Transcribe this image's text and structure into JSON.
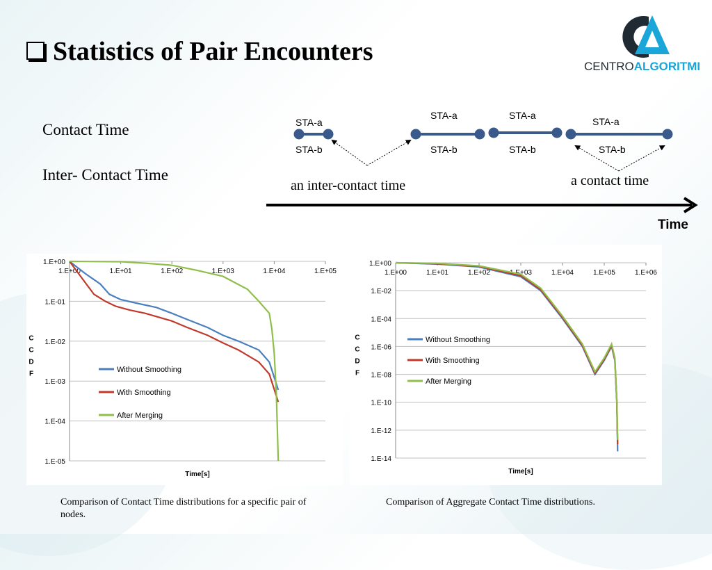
{
  "title": "Statistics of Pair Encounters",
  "logo": {
    "part1": "CENTRO",
    "part2": "ALGORITMI",
    "color_dark": "#1f2a33",
    "color_accent": "#1aa6d9"
  },
  "legend_labels": {
    "contact_time": "Contact Time",
    "inter_contact_time": "Inter- Contact Time"
  },
  "diagram": {
    "sta_a": "STA-a",
    "sta_b": "STA-b",
    "inter_contact_label": "an inter-contact time",
    "contact_label": "a contact time",
    "time_label": "Time",
    "line_color": "#3a5a8c"
  },
  "captions": {
    "left": "Comparison of  Contact Time distributions for a specific pair of nodes.",
    "right": "Comparison of Aggregate Contact Time distributions."
  },
  "colors": {
    "without": "#4a7fbf",
    "with": "#c0392b",
    "after": "#8fbf4a"
  },
  "chart_data": [
    {
      "type": "line",
      "xscale": "log",
      "yscale": "log",
      "xlabel": "Time[s]",
      "ylabel": "CCDF",
      "xticks": [
        "1.E+00",
        "1.E+01",
        "1.E+02",
        "1.E+03",
        "1.E+04",
        "1.E+05"
      ],
      "yticks": [
        "1.E+00",
        "1.E-01",
        "1.E-02",
        "1.E-03",
        "1.E-04",
        "1.E-05"
      ],
      "xlim": [
        1,
        100000
      ],
      "ylim": [
        1e-05,
        1
      ],
      "grid": true,
      "legend": "center-left",
      "series": [
        {
          "name": "Without Smoothing",
          "x": [
            1,
            2,
            4,
            6,
            10,
            20,
            50,
            100,
            200,
            500,
            1000,
            2000,
            5000,
            8000,
            12000
          ],
          "y": [
            1,
            0.5,
            0.27,
            0.15,
            0.11,
            0.09,
            0.07,
            0.05,
            0.035,
            0.022,
            0.014,
            0.01,
            0.006,
            0.003,
            0.0006
          ]
        },
        {
          "name": "With Smoothing",
          "x": [
            1,
            2,
            3,
            5,
            8,
            15,
            30,
            100,
            200,
            500,
            1000,
            2000,
            5000,
            8000,
            12000
          ],
          "y": [
            1,
            0.3,
            0.15,
            0.1,
            0.075,
            0.06,
            0.05,
            0.032,
            0.022,
            0.014,
            0.009,
            0.006,
            0.003,
            0.0015,
            0.0003
          ]
        },
        {
          "name": "After Merging",
          "x": [
            1,
            10,
            30,
            100,
            300,
            1000,
            3000,
            5000,
            8000,
            9000,
            10000,
            11000,
            12000
          ],
          "y": [
            1,
            0.98,
            0.9,
            0.8,
            0.6,
            0.42,
            0.2,
            0.1,
            0.05,
            0.02,
            0.005,
            0.0005,
            1e-05
          ]
        }
      ]
    },
    {
      "type": "line",
      "xscale": "log",
      "yscale": "log",
      "xlabel": "Time[s]",
      "ylabel": "CCDF",
      "xticks": [
        "1.E+00",
        "1.E+01",
        "1.E+02",
        "1.E+03",
        "1.E+04",
        "1.E+05",
        "1.E+06"
      ],
      "yticks": [
        "1.E+00",
        "1.E-02",
        "1.E-04",
        "1.E-06",
        "1.E-08",
        "1.E-10",
        "1.E-12",
        "1.E-14"
      ],
      "xlim": [
        1,
        1000000
      ],
      "ylim": [
        1e-14,
        1
      ],
      "grid": true,
      "legend": "center-left",
      "series": [
        {
          "name": "Without Smoothing",
          "x": [
            1,
            10,
            100,
            1000,
            3000,
            10000,
            30000,
            60000,
            100000,
            150000,
            180000,
            200000,
            210000
          ],
          "y": [
            1,
            0.8,
            0.5,
            0.1,
            0.01,
            0.0001,
            1e-06,
            1e-08,
            1e-07,
            1e-06,
            1e-07,
            1e-10,
            3e-14
          ]
        },
        {
          "name": "With Smoothing",
          "x": [
            1,
            10,
            100,
            1000,
            3000,
            10000,
            30000,
            60000,
            100000,
            150000,
            180000,
            200000,
            210000
          ],
          "y": [
            1,
            0.85,
            0.55,
            0.12,
            0.012,
            0.00012,
            1.2e-06,
            1.2e-08,
            1.2e-07,
            1.2e-06,
            1.2e-07,
            1.2e-10,
            1e-13
          ]
        },
        {
          "name": "After Merging",
          "x": [
            1,
            10,
            100,
            1000,
            3000,
            10000,
            30000,
            60000,
            100000,
            150000,
            180000,
            200000,
            210000
          ],
          "y": [
            1,
            0.9,
            0.6,
            0.15,
            0.015,
            0.00015,
            1.5e-06,
            1.5e-08,
            1.5e-07,
            1.5e-06,
            1.5e-07,
            1.5e-10,
            2e-13
          ]
        }
      ]
    }
  ]
}
